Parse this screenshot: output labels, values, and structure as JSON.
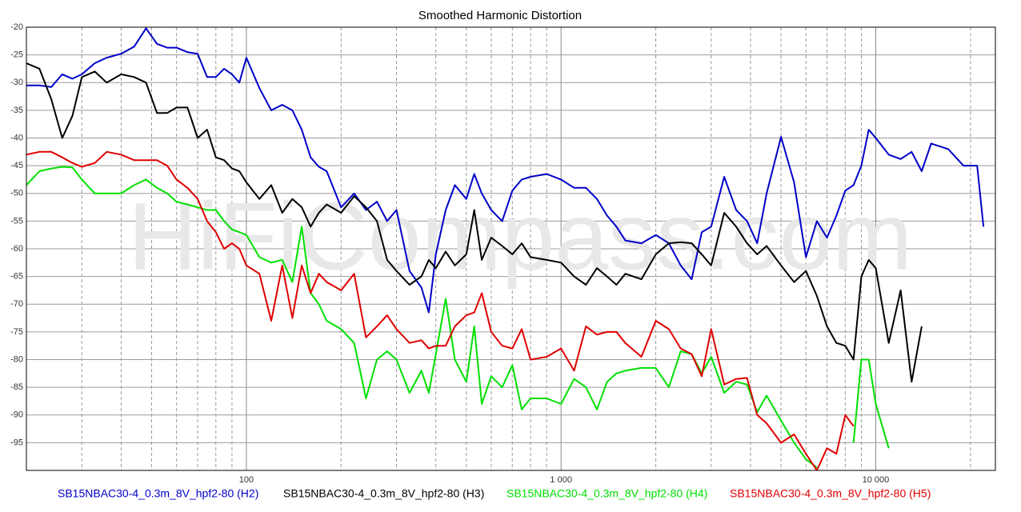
{
  "chart_data": {
    "type": "line",
    "title": "Smoothed Harmonic Distortion",
    "watermark": "HiFiCompass.com",
    "x": [
      20,
      22,
      24,
      26,
      28,
      30,
      33,
      36,
      40,
      44,
      48,
      52,
      56,
      60,
      65,
      70,
      75,
      80,
      85,
      90,
      95,
      100,
      110,
      120,
      130,
      140,
      150,
      160,
      170,
      180,
      200,
      220,
      240,
      260,
      280,
      300,
      330,
      360,
      380,
      400,
      430,
      460,
      500,
      530,
      560,
      600,
      650,
      700,
      750,
      800,
      900,
      1000,
      1100,
      1200,
      1300,
      1400,
      1500,
      1600,
      1800,
      2000,
      2200,
      2400,
      2600,
      2800,
      3000,
      3300,
      3600,
      3900,
      4200,
      4500,
      5000,
      5500,
      6000,
      6500,
      7000,
      7500,
      8000,
      8500,
      9000,
      9500,
      10000,
      11000,
      12000,
      13000,
      14000,
      15000,
      17000,
      19000,
      21000,
      22000
    ],
    "series": [
      {
        "name": "SB15NBAC30-4_0.3m_8V_hpf2-80 (H2)",
        "color": "#0000c8",
        "values": [
          -30.5,
          -30.5,
          -30.8,
          -28.5,
          -29.3,
          -28.5,
          -26.5,
          -25.5,
          -24.8,
          -23.5,
          -20.2,
          -23,
          -23.7,
          -23.7,
          -24.5,
          -24.8,
          -29,
          -29,
          -27.5,
          -28.5,
          -30,
          -25.5,
          -31,
          -35,
          -34,
          -35,
          -38.5,
          -43.5,
          -45.2,
          -46,
          -52.5,
          -50,
          -53,
          -51.5,
          -55,
          -53,
          -64,
          -67,
          -71.5,
          -61,
          -53,
          -48.5,
          -51,
          -46.5,
          -50,
          -53,
          -55,
          -49.5,
          -47.5,
          -47,
          -46.5,
          -47.5,
          -49,
          -49,
          -51,
          -54,
          -56,
          -58.5,
          -59,
          -57.5,
          -59,
          -63,
          -65.5,
          -57,
          -56,
          -47,
          -53,
          -55,
          -59,
          -50,
          -39.8,
          -48,
          -61.5,
          -55,
          -58,
          -54,
          -49.5,
          -48.5,
          -45,
          -38.5,
          -40,
          -43,
          -43.8,
          -42.5,
          -46,
          -41,
          -42,
          -45,
          -45,
          -56
        ]
      },
      {
        "name": "SB15NBAC30-4_0.3m_8V_hpf2-80 (H3)",
        "color": "#000000",
        "values": [
          -26.5,
          -27.5,
          -33,
          -40,
          -36,
          -29,
          -28,
          -30,
          -28.5,
          -29,
          -30,
          -35.5,
          -35.5,
          -34.5,
          -34.5,
          -40,
          -38.5,
          -43.5,
          -44,
          -45.5,
          -46,
          -48,
          -51,
          -48.5,
          -53.5,
          -51,
          -52.5,
          -56,
          -53.5,
          -52,
          -53.5,
          -50.5,
          -52.5,
          -55,
          -62,
          -64,
          -66.5,
          -65,
          -62,
          -63.5,
          -60.5,
          -63,
          -61,
          -53,
          -62,
          -58,
          -59.5,
          -61,
          -59,
          -61.5,
          -62,
          -62.5,
          -65,
          -66.5,
          -63.5,
          -65,
          -66.5,
          -64.5,
          -65.5,
          -61,
          -59,
          -58.8,
          -59,
          -61,
          -63,
          -53.5,
          -56,
          -59,
          -61,
          -59.5,
          -63,
          -66,
          -64,
          -68.5,
          -74,
          -77,
          -77.5,
          -80,
          -65,
          -62,
          -63.5,
          -77,
          -67.5,
          -84,
          -74,
          null,
          null,
          null,
          null,
          null
        ]
      },
      {
        "name": "SB15NBAC30-4_0.3m_8V_hpf2-80 (H4)",
        "color": "#00e000",
        "values": [
          -48.5,
          -46,
          -45.5,
          -45.2,
          -45.3,
          -47.5,
          -50,
          -50,
          -50,
          -48.5,
          -47.5,
          -49,
          -50,
          -51.5,
          -52,
          -52.5,
          -53,
          -53,
          -55,
          -56.5,
          -57,
          -57.5,
          -61.5,
          -62.5,
          -62,
          -66,
          -56,
          -68,
          -70,
          -73,
          -74.5,
          -77,
          -87,
          -80,
          -78.5,
          -80,
          -86,
          -82,
          -86,
          -79,
          -69,
          -80,
          -84,
          -74,
          -88,
          -83,
          -85,
          -81,
          -89,
          -87,
          -87,
          -88,
          -83.5,
          -85,
          -89,
          -84,
          -82.5,
          -82,
          -81.5,
          -81.5,
          -85,
          -78.5,
          -79,
          -82.5,
          -79.5,
          -86,
          -84,
          -84.5,
          -89.5,
          -86.5,
          -91,
          -95,
          -98,
          -99.5,
          null,
          null,
          null,
          -95,
          -80,
          -80,
          -88,
          -96,
          null,
          null,
          null,
          null,
          null,
          null,
          null,
          null
        ]
      },
      {
        "name": "SB15NBAC30-4_0.3m_8V_hpf2-80 (H5)",
        "color": "#e00000",
        "values": [
          -43,
          -42.5,
          -42.5,
          -43.5,
          -44.5,
          -45.2,
          -44.5,
          -42.5,
          -43,
          -44,
          -44,
          -44,
          -45,
          -47.5,
          -49,
          -51,
          -55,
          -57,
          -60,
          -59,
          -60,
          -63,
          -64.5,
          -73,
          -63,
          -72.5,
          -63,
          -68,
          -64.5,
          -66,
          -67.5,
          -64.5,
          -76,
          -74,
          -72,
          -74.5,
          -77,
          -76.5,
          -78,
          -77.5,
          -77.5,
          -74,
          -72,
          -71.5,
          -68,
          -75,
          -77.5,
          -78,
          -74.5,
          -80,
          -79.5,
          -78,
          -82,
          -74,
          -75.5,
          -75,
          -75,
          -77,
          -79.5,
          -73,
          -74.5,
          -78,
          -79,
          -83,
          -74.5,
          -84.5,
          -83.5,
          -83.3,
          -90,
          -91.5,
          -95,
          -93.5,
          -97,
          -100,
          -96,
          -97,
          -90,
          -92,
          null,
          null,
          null,
          null,
          null,
          null,
          null,
          null,
          null,
          null,
          null,
          null
        ]
      }
    ],
    "xlim": [
      20,
      24000
    ],
    "log_x": true,
    "xticks": [
      100,
      {
        "value": 1000,
        "label": "1 000"
      },
      {
        "value": 10000,
        "label": "10 000"
      }
    ],
    "xminorticks": [
      20,
      30,
      40,
      50,
      60,
      70,
      80,
      90,
      200,
      300,
      400,
      500,
      600,
      700,
      800,
      900,
      2000,
      3000,
      4000,
      5000,
      6000,
      7000,
      8000,
      9000,
      20000
    ],
    "ylim": [
      -100,
      -20
    ],
    "yticks": [
      -20,
      -25,
      -30,
      -35,
      -40,
      -45,
      -50,
      -55,
      -60,
      -65,
      -70,
      -75,
      -80,
      -85,
      -90,
      -95
    ],
    "grid": true
  }
}
